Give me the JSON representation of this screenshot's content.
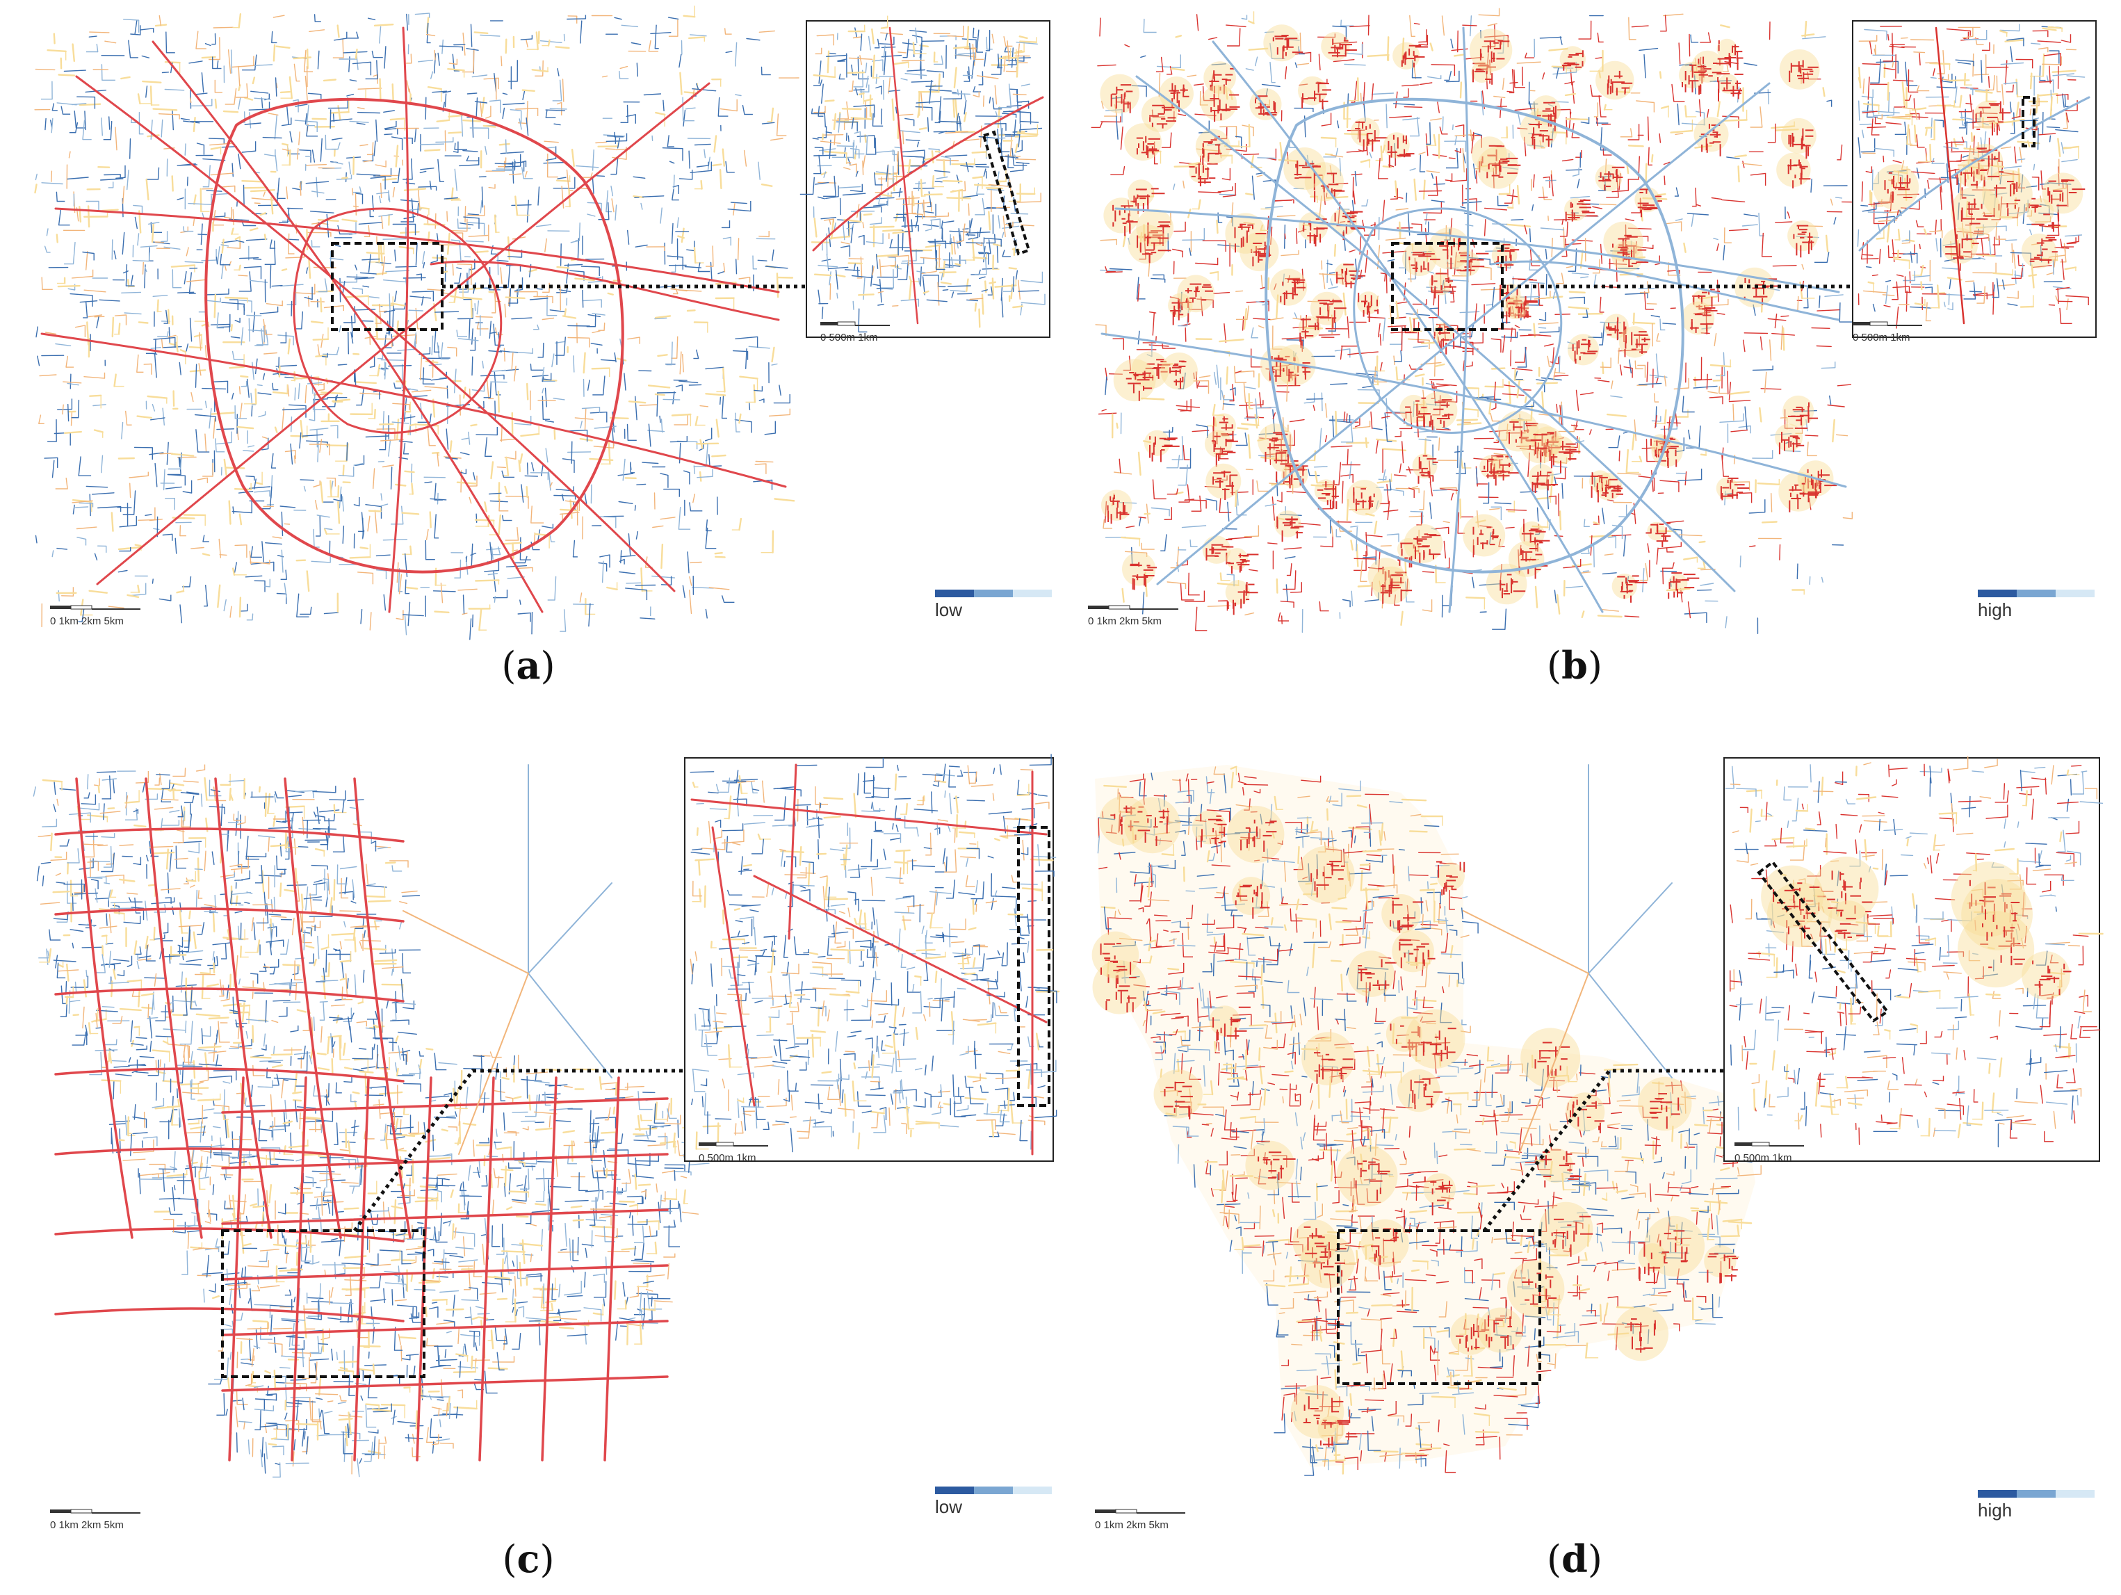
{
  "panels": [
    {
      "id": "a",
      "caption": "a",
      "legend_label": "low",
      "main_scale": "0  1km 2km       5km",
      "inset_scale": "0     500m      1km",
      "network": "ring",
      "hot": false
    },
    {
      "id": "b",
      "caption": "b",
      "legend_label": "high",
      "main_scale": "0  1km 2km       5km",
      "inset_scale": "0     500m      1km",
      "network": "ring",
      "hot": true
    },
    {
      "id": "c",
      "caption": "c",
      "legend_label": "low",
      "main_scale": "0  1km 2km       5km",
      "inset_scale": "0     500m      1km",
      "network": "grid",
      "hot": false
    },
    {
      "id": "d",
      "caption": "d",
      "legend_label": "high",
      "main_scale": "0  1km 2km       5km",
      "inset_scale": "0     500m      1km",
      "network": "grid",
      "hot": true
    }
  ],
  "colors": {
    "arterial": "#e0474c",
    "local_blue": "#3b6fb0",
    "light_blue": "#8fb4d8",
    "orange": "#f2b57a",
    "pale_yellow": "#f8dd9a",
    "hot_red": "#d9332f",
    "legend_ramp": [
      "#2c5aa0",
      "#7aa6d2",
      "#d6e8f5"
    ]
  }
}
